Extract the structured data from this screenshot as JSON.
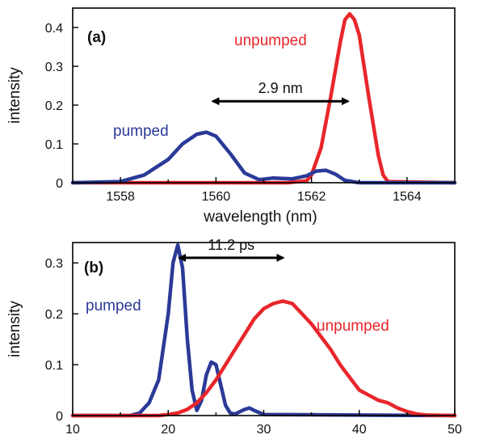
{
  "chart_data": [
    {
      "type": "line",
      "panel_label": "(a)",
      "xlabel": "wavelength (nm)",
      "ylabel": "intensity",
      "xlim": [
        1557,
        1565
      ],
      "ylim": [
        0,
        0.45
      ],
      "xticks": [
        1558,
        1560,
        1562,
        1564
      ],
      "yticks": [
        0,
        0.1,
        0.2,
        0.3,
        0.4
      ],
      "ytick_labels": [
        "0",
        "0.1",
        "0.2",
        "0.3",
        "0.4"
      ],
      "annotation": {
        "text": "2.9 nm",
        "from": 1559.9,
        "to": 1562.8,
        "y": 0.21
      },
      "series": [
        {
          "name": "unpumped",
          "color": "#e8262b",
          "x": [
            1557,
            1561.5,
            1561.9,
            1562.0,
            1562.2,
            1562.4,
            1562.6,
            1562.7,
            1562.8,
            1562.9,
            1563.0,
            1563.2,
            1563.4,
            1563.5,
            1563.6,
            1565
          ],
          "y": [
            0,
            0,
            0.005,
            0.02,
            0.09,
            0.22,
            0.36,
            0.42,
            0.435,
            0.42,
            0.38,
            0.22,
            0.07,
            0.02,
            0.003,
            0
          ]
        },
        {
          "name": "pumped",
          "color": "#2b3a97",
          "x": [
            1557,
            1558.0,
            1558.5,
            1559.0,
            1559.3,
            1559.6,
            1559.8,
            1560.0,
            1560.3,
            1560.6,
            1560.9,
            1561.2,
            1561.6,
            1561.9,
            1562.1,
            1562.3,
            1562.5,
            1562.7,
            1563.0,
            1565
          ],
          "y": [
            0,
            0.003,
            0.02,
            0.06,
            0.1,
            0.125,
            0.13,
            0.12,
            0.075,
            0.025,
            0.008,
            0.012,
            0.01,
            0.018,
            0.03,
            0.032,
            0.022,
            0.006,
            0,
            0
          ]
        }
      ]
    },
    {
      "type": "line",
      "panel_label": "(b)",
      "ylabel": "intensity",
      "xlim": [
        10,
        50
      ],
      "ylim": [
        0,
        0.34
      ],
      "xticks": [
        10,
        20,
        30,
        40,
        50
      ],
      "yticks": [
        0,
        0.1,
        0.2,
        0.3
      ],
      "ytick_labels": [
        "0",
        "0.1",
        "0.2",
        "0.3"
      ],
      "annotation": {
        "text": "11.2 ps",
        "from": 21,
        "to": 32.2,
        "y": 0.31
      },
      "series": [
        {
          "name": "pumped",
          "color": "#2b3a97",
          "x": [
            10,
            16,
            17,
            18,
            19,
            20,
            20.5,
            21,
            21.5,
            22,
            22.5,
            23,
            23.5,
            24,
            24.5,
            25,
            25.5,
            26,
            26.5,
            27,
            28,
            28.5,
            29,
            30,
            50
          ],
          "y": [
            0,
            0,
            0.005,
            0.025,
            0.07,
            0.2,
            0.3,
            0.335,
            0.29,
            0.15,
            0.05,
            0.01,
            0.03,
            0.08,
            0.105,
            0.1,
            0.06,
            0.02,
            0.005,
            0.003,
            0.012,
            0.015,
            0.01,
            0.002,
            0
          ]
        },
        {
          "name": "unpumped",
          "color": "#e8262b",
          "x": [
            10,
            19,
            20,
            21,
            22,
            23,
            24,
            25,
            26,
            27,
            28,
            29,
            30,
            31,
            32,
            33,
            34,
            35,
            36,
            37,
            38,
            39,
            40,
            41,
            42,
            43,
            44,
            45,
            46,
            47,
            50
          ],
          "y": [
            0,
            0,
            0.002,
            0.005,
            0.012,
            0.025,
            0.045,
            0.07,
            0.1,
            0.13,
            0.16,
            0.19,
            0.21,
            0.22,
            0.225,
            0.22,
            0.2,
            0.18,
            0.155,
            0.13,
            0.1,
            0.075,
            0.05,
            0.04,
            0.03,
            0.025,
            0.015,
            0.008,
            0.003,
            0.001,
            0
          ]
        }
      ]
    }
  ]
}
